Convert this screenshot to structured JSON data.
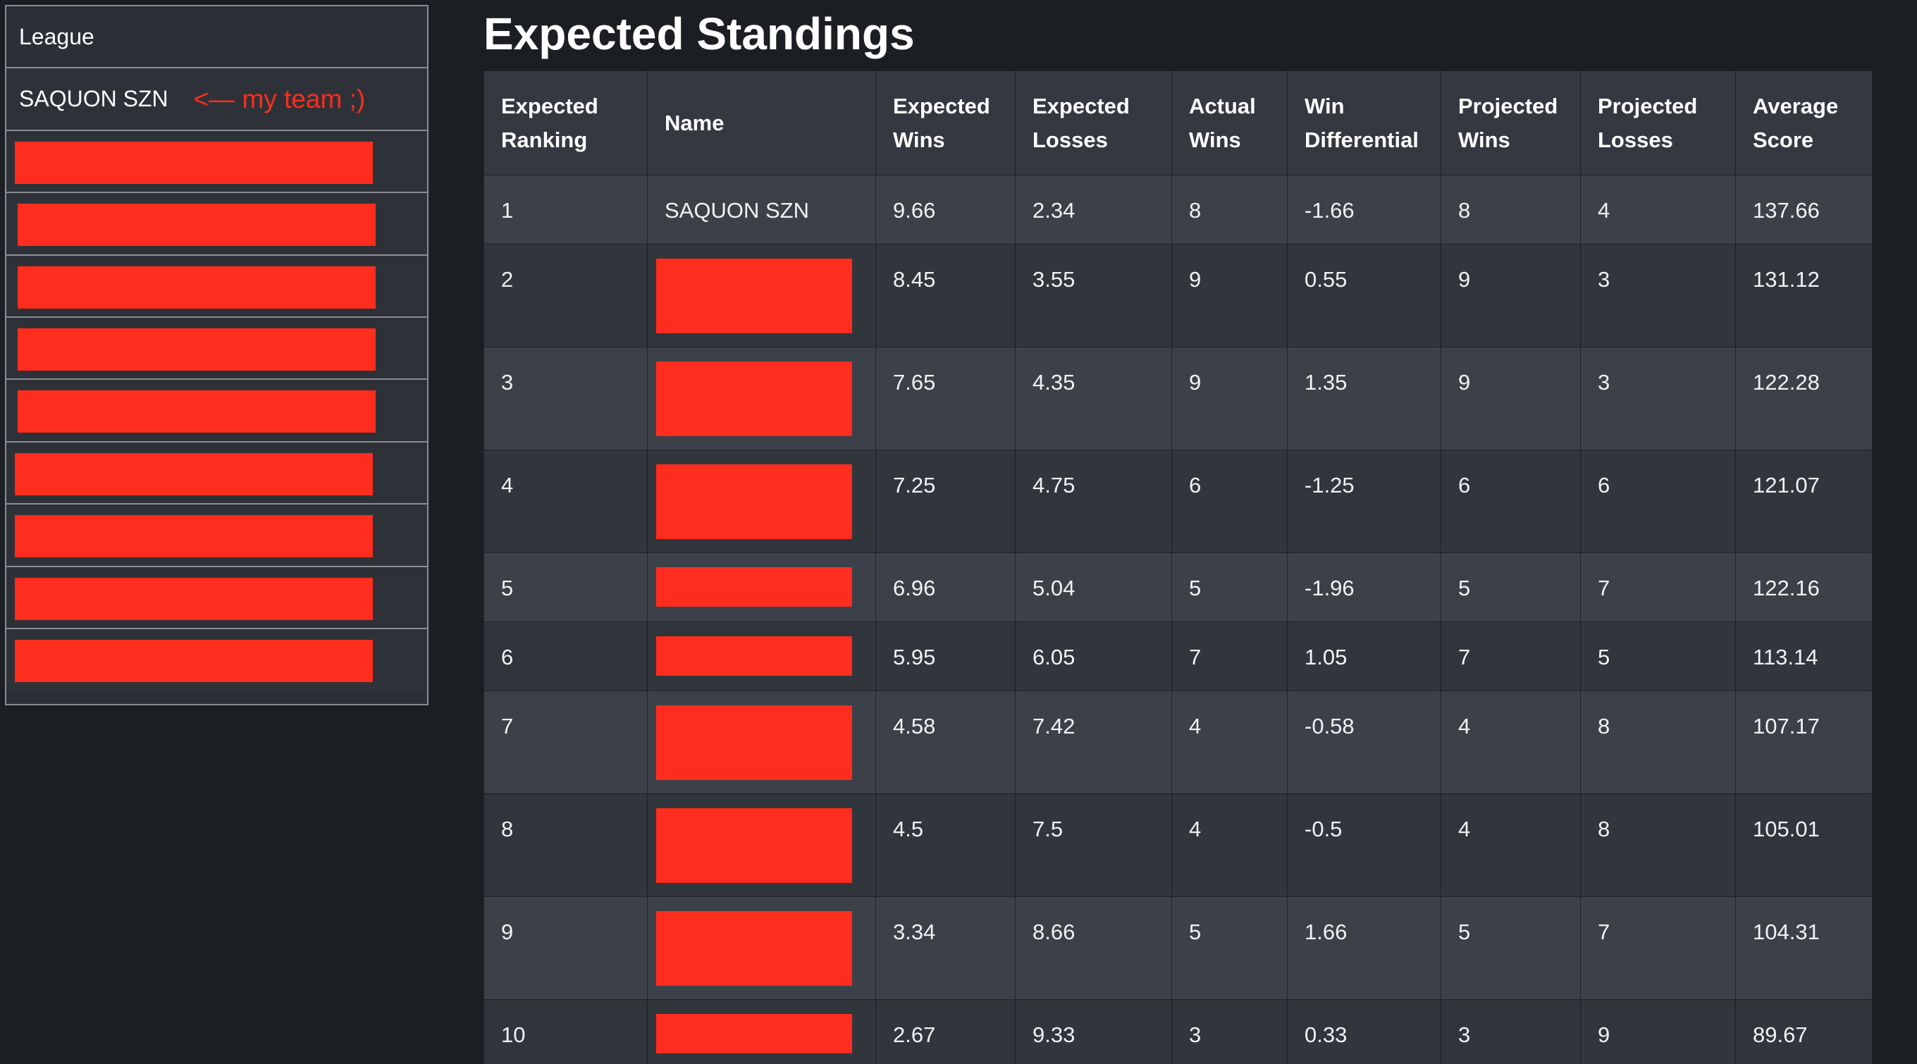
{
  "sidebar": {
    "header": "League",
    "my_team": "SAQUON SZN",
    "my_team_note": "<— my team ;)",
    "redacted_items": 9
  },
  "main": {
    "title": "Expected Standings",
    "columns": [
      "Expected Ranking",
      "Name",
      "Expected Wins",
      "Expected Losses",
      "Actual Wins",
      "Win Differential",
      "Projected Wins",
      "Projected Losses",
      "Average Score"
    ],
    "rows": [
      {
        "rank": "1",
        "name": "SAQUON SZN",
        "exp_wins": "9.66",
        "exp_losses": "2.34",
        "actual_wins": "8",
        "win_diff": "-1.66",
        "proj_wins": "8",
        "proj_losses": "4",
        "avg_score": "137.66"
      },
      {
        "rank": "2",
        "name": "",
        "exp_wins": "8.45",
        "exp_losses": "3.55",
        "actual_wins": "9",
        "win_diff": "0.55",
        "proj_wins": "9",
        "proj_losses": "3",
        "avg_score": "131.12"
      },
      {
        "rank": "3",
        "name": "",
        "exp_wins": "7.65",
        "exp_losses": "4.35",
        "actual_wins": "9",
        "win_diff": "1.35",
        "proj_wins": "9",
        "proj_losses": "3",
        "avg_score": "122.28"
      },
      {
        "rank": "4",
        "name": "",
        "exp_wins": "7.25",
        "exp_losses": "4.75",
        "actual_wins": "6",
        "win_diff": "-1.25",
        "proj_wins": "6",
        "proj_losses": "6",
        "avg_score": "121.07"
      },
      {
        "rank": "5",
        "name": "",
        "exp_wins": "6.96",
        "exp_losses": "5.04",
        "actual_wins": "5",
        "win_diff": "-1.96",
        "proj_wins": "5",
        "proj_losses": "7",
        "avg_score": "122.16"
      },
      {
        "rank": "6",
        "name": "",
        "exp_wins": "5.95",
        "exp_losses": "6.05",
        "actual_wins": "7",
        "win_diff": "1.05",
        "proj_wins": "7",
        "proj_losses": "5",
        "avg_score": "113.14"
      },
      {
        "rank": "7",
        "name": "",
        "exp_wins": "4.58",
        "exp_losses": "7.42",
        "actual_wins": "4",
        "win_diff": "-0.58",
        "proj_wins": "4",
        "proj_losses": "8",
        "avg_score": "107.17"
      },
      {
        "rank": "8",
        "name": "",
        "exp_wins": "4.5",
        "exp_losses": "7.5",
        "actual_wins": "4",
        "win_diff": "-0.5",
        "proj_wins": "4",
        "proj_losses": "8",
        "avg_score": "105.01"
      },
      {
        "rank": "9",
        "name": "",
        "exp_wins": "3.34",
        "exp_losses": "8.66",
        "actual_wins": "5",
        "win_diff": "1.66",
        "proj_wins": "5",
        "proj_losses": "7",
        "avg_score": "104.31"
      },
      {
        "rank": "10",
        "name": "",
        "exp_wins": "2.67",
        "exp_losses": "9.33",
        "actual_wins": "3",
        "win_diff": "0.33",
        "proj_wins": "3",
        "proj_losses": "9",
        "avg_score": "89.67"
      }
    ]
  },
  "colors": {
    "background": "#1b1e22",
    "redaction": "#ff2d1e",
    "row_odd": "#3c4149",
    "row_even": "#31353c",
    "header": "#343941"
  }
}
